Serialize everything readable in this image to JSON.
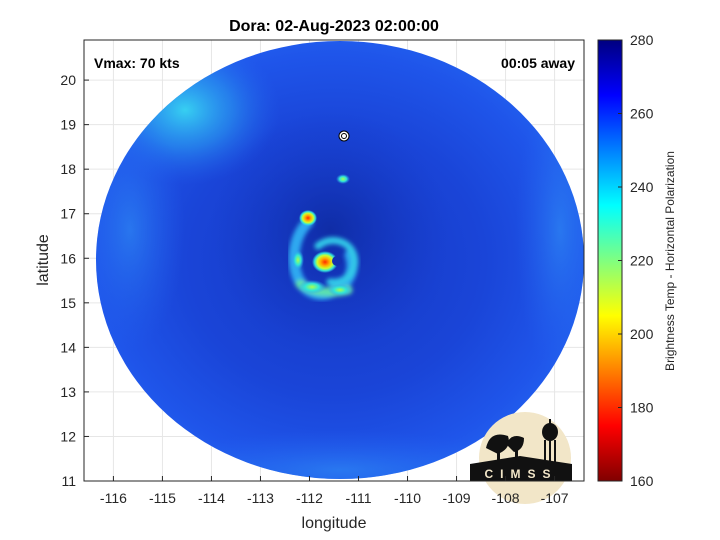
{
  "title": "Dora: 02-Aug-2023 02:00:00",
  "vmax_label": "Vmax: 70 kts",
  "time_away_label": "00:05 away",
  "map": {
    "xlabel": "longitude",
    "ylabel": "latitude",
    "xlim": [
      -116.6,
      -106.4
    ],
    "ylim": [
      11,
      20.9
    ],
    "xticks": [
      -116,
      -115,
      -114,
      -113,
      -112,
      -111,
      -110,
      -109,
      -108,
      -107
    ],
    "yticks": [
      11,
      12,
      13,
      14,
      15,
      16,
      17,
      18,
      19,
      20
    ],
    "grid": true,
    "swath_center": {
      "lon": -111.1,
      "lat": 15.95
    },
    "storm_center": {
      "lon": -111.0,
      "lat": 16.0
    }
  },
  "colorbar": {
    "label": "Brightness Temp - Horizontal Polarization",
    "ticks": [
      160,
      180,
      200,
      220,
      240,
      260,
      280
    ],
    "range": [
      160,
      280
    ],
    "colors": [
      "#800000",
      "#ff0000",
      "#ff8000",
      "#ffff00",
      "#80ff80",
      "#00ffff",
      "#0080ff",
      "#0000ff",
      "#000080"
    ]
  },
  "logo": {
    "text": "CIMSS"
  },
  "colors": {
    "swath_base": "#1f4fe8",
    "swath_dark": "#1233b8",
    "swath_light": "#27c6f0",
    "eyewall_hot": "#ff8a00"
  }
}
